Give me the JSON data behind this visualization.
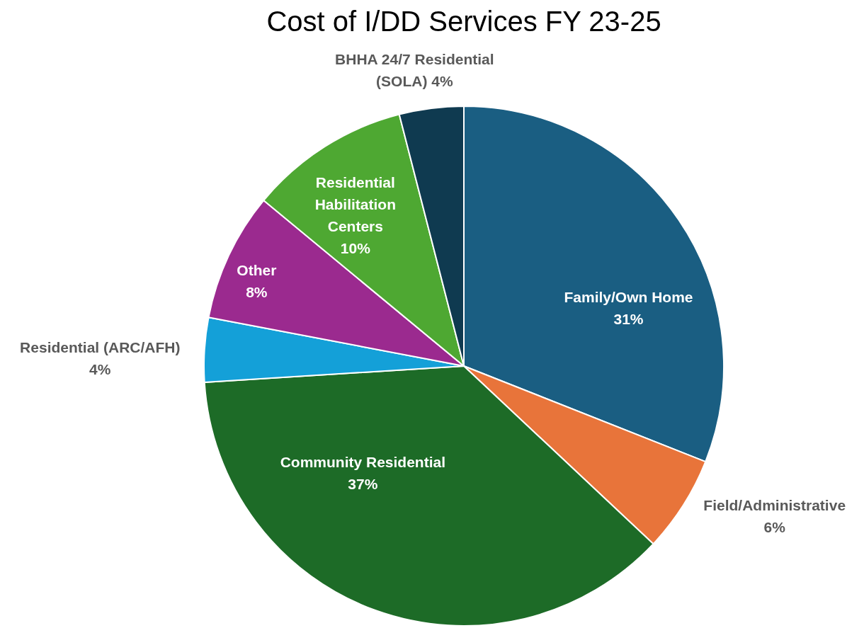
{
  "chart_data": {
    "type": "pie",
    "title": "Cost of I/DD Services FY 23-25",
    "categories": [
      "Family/Own Home",
      "Field/Administrative",
      "Community Residential",
      "Residential (ARC/AFH)",
      "Other",
      "Residential Habilitation Centers",
      "BHHA 24/7 Residential (SOLA)"
    ],
    "values": [
      31,
      6,
      37,
      4,
      8,
      10,
      4
    ],
    "value_labels": [
      "31%",
      "6%",
      "37%",
      "4%",
      "8%",
      "10%",
      "4%"
    ],
    "colors": [
      "#1a5e82",
      "#e8743a",
      "#1d6b27",
      "#14a0d8",
      "#9b2a8f",
      "#4ea832",
      "#0f3a50"
    ],
    "legend": false
  }
}
